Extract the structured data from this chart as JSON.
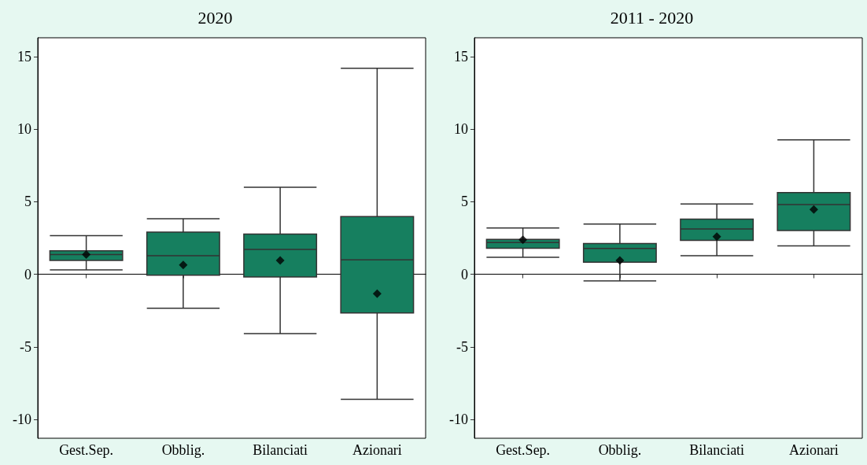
{
  "chart_data": [
    {
      "type": "box",
      "title": "2020",
      "categories": [
        "Gest.Sep.",
        "Obblig.",
        "Bilanciati",
        "Azionari"
      ],
      "color": "#167f5f",
      "marker": "diamond",
      "ylim": [
        -11.3,
        16.3
      ],
      "yticks": [
        -10,
        -5,
        0,
        5,
        10,
        15
      ],
      "boxes": [
        {
          "low": 0.3,
          "q1": 0.96,
          "median": 1.36,
          "q3": 1.62,
          "high": 2.66,
          "mean": 1.36
        },
        {
          "low": -2.34,
          "q1": -0.06,
          "median": 1.28,
          "q3": 2.9,
          "high": 3.83,
          "mean": 0.64
        },
        {
          "low": -4.09,
          "q1": -0.19,
          "median": 1.71,
          "q3": 2.77,
          "high": 6.0,
          "mean": 0.96
        },
        {
          "low": -8.61,
          "q1": -2.66,
          "median": 1.0,
          "q3": 3.98,
          "high": 14.2,
          "mean": -1.34
        }
      ]
    },
    {
      "type": "box",
      "title": "2011 - 2020",
      "categories": [
        "Gest.Sep.",
        "Obblig.",
        "Bilanciati",
        "Azionari"
      ],
      "color": "#167f5f",
      "marker": "diamond",
      "ylim": [
        -11.3,
        16.3
      ],
      "yticks": [
        -10,
        -5,
        0,
        5,
        10,
        15
      ],
      "boxes": [
        {
          "low": 1.17,
          "q1": 1.79,
          "median": 2.19,
          "q3": 2.4,
          "high": 3.19,
          "mean": 2.38
        },
        {
          "low": -0.45,
          "q1": 0.83,
          "median": 1.78,
          "q3": 2.12,
          "high": 3.46,
          "mean": 0.96
        },
        {
          "low": 1.28,
          "q1": 2.34,
          "median": 3.12,
          "q3": 3.8,
          "high": 4.84,
          "mean": 2.59
        },
        {
          "low": 1.96,
          "q1": 3.02,
          "median": 4.8,
          "q3": 5.63,
          "high": 9.26,
          "mean": 4.46
        }
      ]
    }
  ]
}
